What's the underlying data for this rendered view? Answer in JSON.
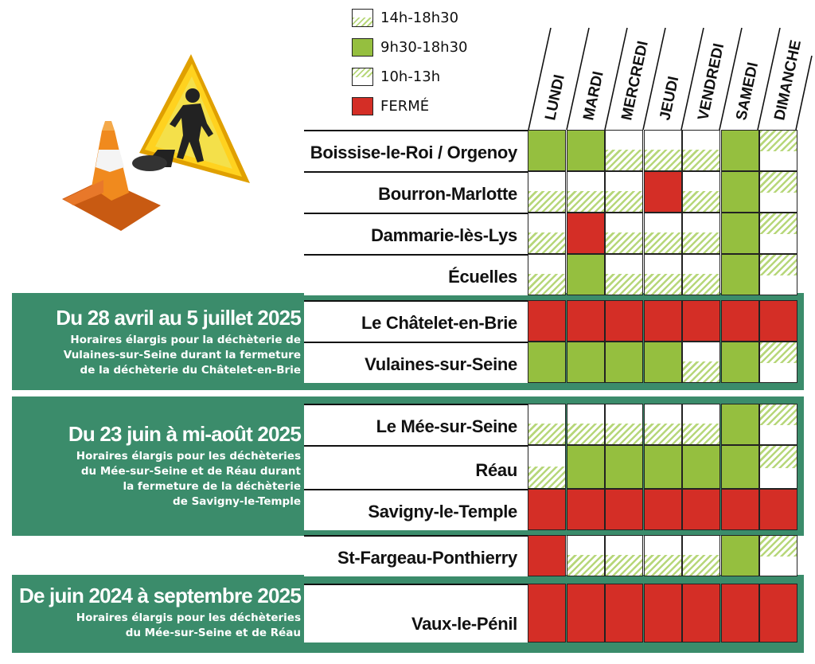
{
  "legend": [
    {
      "label": "14h-18h30",
      "type": "pm"
    },
    {
      "label": "9h30-18h30",
      "type": "green"
    },
    {
      "label": "10h-13h",
      "type": "am"
    },
    {
      "label": "FERMÉ",
      "type": "red"
    }
  ],
  "days": [
    "LUNDI",
    "MARDI",
    "MERCREDI",
    "JEUDI",
    "VENDREDI",
    "SAMEDI",
    "DIMANCHE"
  ],
  "bands": [
    {
      "title": "Du 28 avril au 5 juillet 2025",
      "subtitle": [
        "Horaires élargis pour la déchèterie de",
        "Vulaines-sur-Seine durant la fermeture",
        "de la déchèterie du Châtelet-en-Brie"
      ]
    },
    {
      "title": "Du 23 juin à mi-août 2025",
      "subtitle": [
        "Horaires élargis pour les déchèteries",
        "du Mée-sur-Seine et de Réau durant",
        "la fermeture de la déchèterie",
        "de Savigny-le-Temple"
      ]
    },
    {
      "title": "De juin 2024 à septembre 2025",
      "subtitle": [
        "Horaires élargis pour les déchèteries",
        "du Mée-sur-Seine et de Réau"
      ]
    }
  ],
  "rows": [
    {
      "name": "Boissise-le-Roi / Orgenoy",
      "cells": [
        "green",
        "green",
        "pm",
        "pm",
        "pm",
        "green",
        "am"
      ]
    },
    {
      "name": "Bourron-Marlotte",
      "cells": [
        "pm",
        "pm",
        "pm",
        "red",
        "pm",
        "green",
        "am"
      ]
    },
    {
      "name": "Dammarie-lès-Lys",
      "cells": [
        "pm",
        "red",
        "pm",
        "pm",
        "pm",
        "green",
        "am"
      ]
    },
    {
      "name": "Écuelles",
      "cells": [
        "pm",
        "green",
        "pm",
        "pm",
        "pm",
        "green",
        "am"
      ]
    },
    {
      "name": "Le Châtelet-en-Brie",
      "cells": [
        "red",
        "red",
        "red",
        "red",
        "red",
        "red",
        "red"
      ]
    },
    {
      "name": "Vulaines-sur-Seine",
      "cells": [
        "green",
        "green",
        "green",
        "green",
        "pm",
        "green",
        "am"
      ]
    },
    {
      "name": "Le Mée-sur-Seine",
      "cells": [
        "pm",
        "pm",
        "pm",
        "pm",
        "pm",
        "green",
        "am"
      ]
    },
    {
      "name": "Réau",
      "cells": [
        "pm",
        "green",
        "green",
        "green",
        "green",
        "green",
        "am"
      ]
    },
    {
      "name": "Savigny-le-Temple",
      "cells": [
        "red",
        "red",
        "red",
        "red",
        "red",
        "red",
        "red"
      ]
    },
    {
      "name": "St-Fargeau-Ponthierry",
      "cells": [
        "red",
        "pm",
        "pm",
        "pm",
        "pm",
        "green",
        "am"
      ]
    },
    {
      "name": "Vaux-le-Pénil",
      "cells": [
        "red",
        "red",
        "red",
        "red",
        "red",
        "red",
        "red"
      ]
    }
  ],
  "colors": {
    "green": "#95bf3f",
    "red": "#d42e26",
    "band": "#3b8c6b",
    "hatch": "#b7d77a"
  },
  "icons": [
    "traffic-cone-icon",
    "roadwork-warning-sign-icon"
  ]
}
